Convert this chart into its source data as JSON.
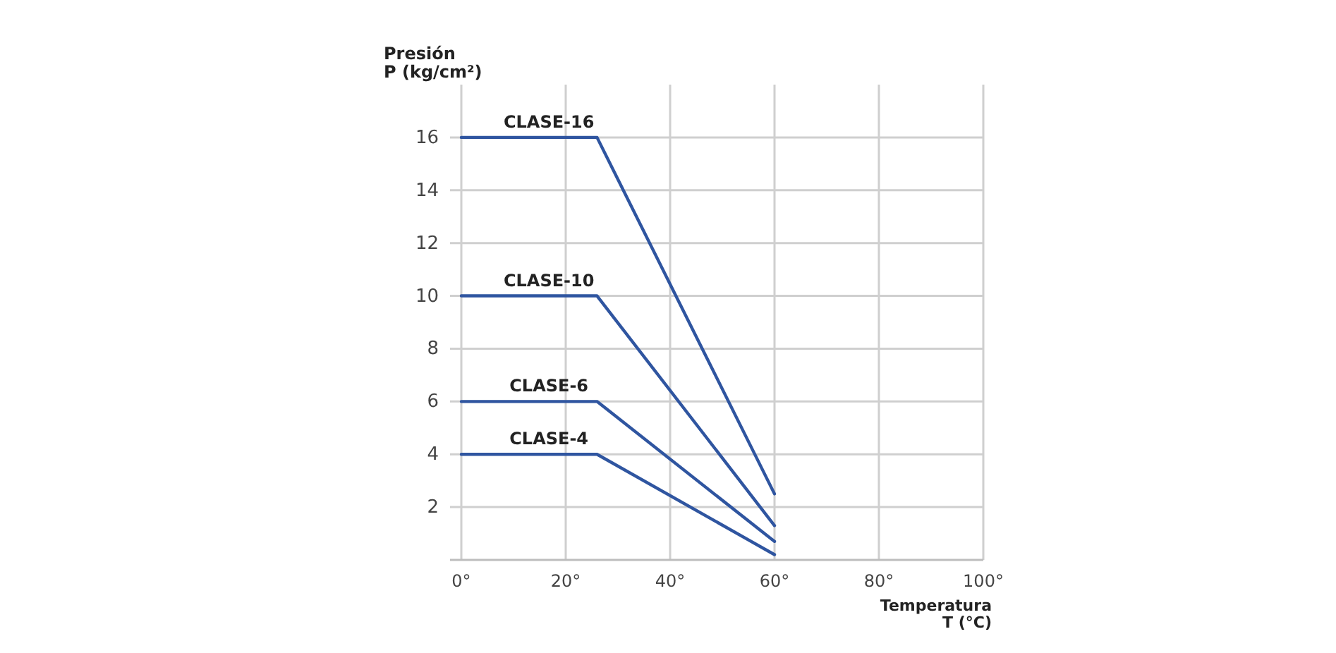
{
  "chart_data": {
    "type": "line",
    "xlabel": "Temperatura\nT (°C)",
    "ylabel": "Presión\nP (kg/cm²)",
    "x": [
      0,
      26,
      60
    ],
    "series": [
      {
        "name": "CLASE-16",
        "color": "#2f55a0",
        "values": [
          16,
          16,
          2.5
        ]
      },
      {
        "name": "CLASE-10",
        "color": "#2f55a0",
        "values": [
          10,
          10,
          1.3
        ]
      },
      {
        "name": "CLASE-6",
        "color": "#2f55a0",
        "values": [
          6,
          6,
          0.7
        ]
      },
      {
        "name": "CLASE-4",
        "color": "#2f55a0",
        "values": [
          4,
          4,
          0.2
        ]
      }
    ],
    "xlim": [
      0,
      100
    ],
    "ylim": [
      0,
      18
    ],
    "xticks": [
      {
        "value": 0,
        "label": "0°"
      },
      {
        "value": 20,
        "label": "20°"
      },
      {
        "value": 40,
        "label": "40°"
      },
      {
        "value": 60,
        "label": "60°"
      },
      {
        "value": 80,
        "label": "80°"
      },
      {
        "value": 100,
        "label": "100°"
      }
    ],
    "yticks": [
      2,
      4,
      6,
      8,
      10,
      12,
      14,
      16
    ],
    "grid": true,
    "legend": false,
    "marker": "none",
    "line_style": "solid"
  }
}
